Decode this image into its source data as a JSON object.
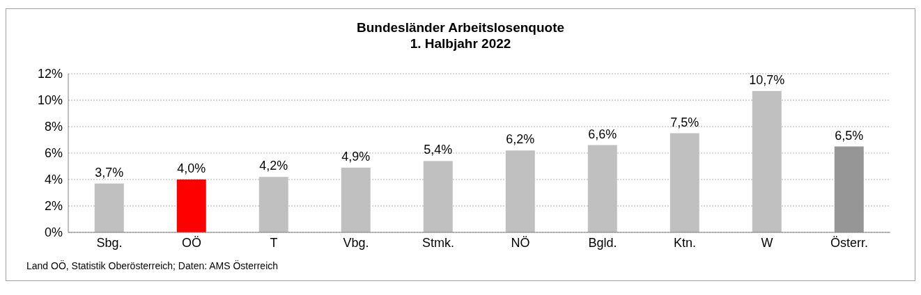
{
  "chart_data": {
    "type": "bar",
    "title": "Bundesländer Arbeitslosenquote",
    "subtitle": "1. Halbjahr 2022",
    "categories": [
      "Sbg.",
      "OÖ",
      "T",
      "Vbg.",
      "Stmk.",
      "NÖ",
      "Bgld.",
      "Ktn.",
      "W",
      "Österr."
    ],
    "values": [
      3.7,
      4.0,
      4.2,
      4.9,
      5.4,
      6.2,
      6.6,
      7.5,
      10.7,
      6.5
    ],
    "value_labels": [
      "3,7%",
      "4,0%",
      "4,2%",
      "4,9%",
      "5,4%",
      "6,2%",
      "6,6%",
      "7,5%",
      "10,7%",
      "6,5%"
    ],
    "colors": [
      "#c0c0c0",
      "#ff0000",
      "#c0c0c0",
      "#c0c0c0",
      "#c0c0c0",
      "#c0c0c0",
      "#c0c0c0",
      "#c0c0c0",
      "#c0c0c0",
      "#969696"
    ],
    "ylim": [
      0,
      12
    ],
    "yticks": [
      {
        "value": 0,
        "label": "0%"
      },
      {
        "value": 2,
        "label": "2%"
      },
      {
        "value": 4,
        "label": "4%"
      },
      {
        "value": 6,
        "label": "6%"
      },
      {
        "value": 8,
        "label": "8%"
      },
      {
        "value": 10,
        "label": "10%"
      },
      {
        "value": 12,
        "label": "12%"
      }
    ],
    "grid": "y",
    "annotations": [
      "Land OÖ, Statistik Oberösterreich; Daten: AMS Österreich"
    ]
  }
}
